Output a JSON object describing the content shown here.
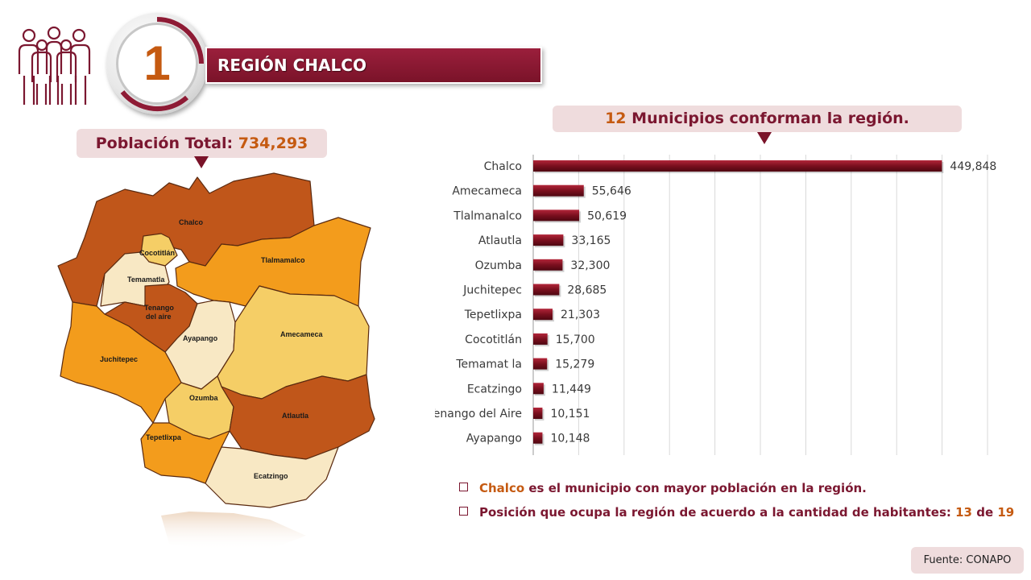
{
  "header": {
    "badge_number": "1",
    "title": "REGIÓN CHALCO"
  },
  "population": {
    "label": "Población Total:",
    "value": "734,293"
  },
  "municipios": {
    "count": "12",
    "text": "Municipios conforman la región."
  },
  "map_labels": {
    "chalco": "Chalco",
    "cocotitlan": "Cocotitlán",
    "tlalmanalco": "Tlalmamalco",
    "temamatla": "Temamatla",
    "tenango_1": "Tenango",
    "tenango_2": "del aire",
    "ayapango": "Ayapango",
    "amecameca": "Amecameca",
    "juchitepec": "Juchitepec",
    "ozumba": "Ozumba",
    "atlautla": "Atlautla",
    "tepetlixpa": "Tepetlixpa",
    "ecatzingo": "Ecatzingo"
  },
  "chart_data": {
    "type": "bar",
    "orientation": "horizontal",
    "categories": [
      "Chalco",
      "Amecameca",
      "Tlalmanalco",
      "Atlautla",
      "Ozumba",
      "Juchitepec",
      "Tepetlixpa",
      "Cocotitlán",
      "Temamat la",
      "Ecatzingo",
      "Tenango del Aire",
      "Ayapango"
    ],
    "values": [
      449848,
      55646,
      50619,
      33165,
      32300,
      28685,
      21303,
      15700,
      15279,
      11449,
      10151,
      10148
    ],
    "value_labels": [
      "449,848",
      "55,646",
      "50,619",
      "33,165",
      "32,300",
      "28,685",
      "21,303",
      "15,700",
      "15,279",
      "11,449",
      "10,151",
      "10,148"
    ],
    "xlim": [
      0,
      500000
    ],
    "grid": true,
    "bar_color": "#7a0f1e"
  },
  "bullets": {
    "b1_highlight": "Chalco",
    "b1_text": " es el municipio con mayor población en la región.",
    "b2_text": "Posición que ocupa la región de acuerdo a la cantidad de habitantes: ",
    "b2_rank": "13",
    "b2_of": " de ",
    "b2_total": "19"
  },
  "source": "Fuente: CONAPO",
  "colors": {
    "maroon": "#7b1730",
    "orange": "#c55a11",
    "pill": "#efdcdd",
    "map_dark": "#c0561a",
    "map_orange": "#f39c1c",
    "map_yellow": "#f5ce66",
    "map_cream": "#f8e8c4"
  }
}
